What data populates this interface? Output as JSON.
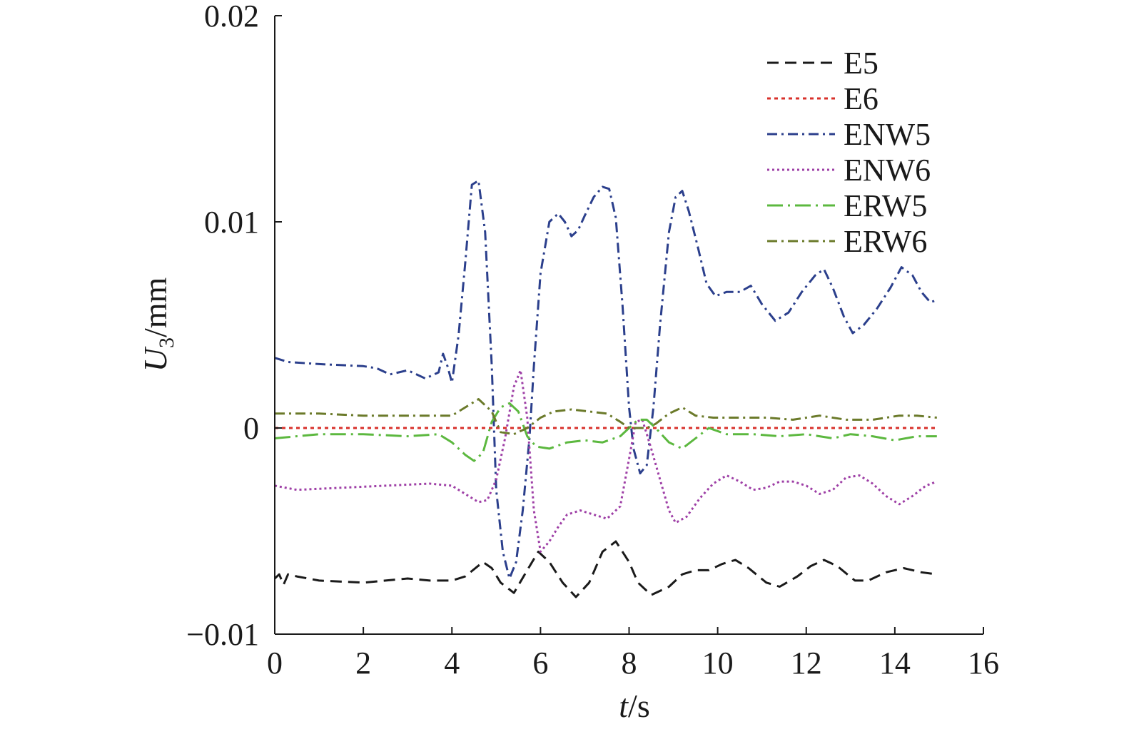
{
  "chart_data": {
    "type": "line",
    "xlabel": {
      "var": "t",
      "unit": "/s"
    },
    "ylabel": {
      "var": "U",
      "sub": "3",
      "unit": "/mm"
    },
    "xlim": [
      0,
      16
    ],
    "ylim": [
      -0.01,
      0.02
    ],
    "xticks": [
      0,
      2,
      4,
      6,
      8,
      10,
      12,
      14,
      16
    ],
    "xtick_labels": [
      "0",
      "2",
      "4",
      "6",
      "8",
      "10",
      "12",
      "14",
      "16"
    ],
    "yticks": [
      -0.01,
      0,
      0.01,
      0.02
    ],
    "ytick_labels": [
      "−0.01",
      "0",
      "0.01",
      "0.02"
    ],
    "grid": false,
    "legend_position": "top-right",
    "series": [
      {
        "name": "E5",
        "color": "#1a1a1a",
        "dash": "dash",
        "points": [
          [
            0,
            -0.0073
          ],
          [
            0.1,
            -0.0071
          ],
          [
            0.2,
            -0.0076
          ],
          [
            0.3,
            -0.0071
          ],
          [
            0.5,
            -0.0072
          ],
          [
            1,
            -0.0074
          ],
          [
            2,
            -0.0075
          ],
          [
            2.5,
            -0.0074
          ],
          [
            3,
            -0.0073
          ],
          [
            3.5,
            -0.0074
          ],
          [
            4,
            -0.0074
          ],
          [
            4.3,
            -0.0072
          ],
          [
            4.7,
            -0.0065
          ],
          [
            4.9,
            -0.0068
          ],
          [
            5.1,
            -0.0075
          ],
          [
            5.4,
            -0.008
          ],
          [
            5.7,
            -0.0069
          ],
          [
            5.95,
            -0.006
          ],
          [
            6.2,
            -0.0065
          ],
          [
            6.5,
            -0.0075
          ],
          [
            6.8,
            -0.0082
          ],
          [
            7.1,
            -0.0075
          ],
          [
            7.4,
            -0.006
          ],
          [
            7.7,
            -0.0055
          ],
          [
            8.0,
            -0.0065
          ],
          [
            8.2,
            -0.0075
          ],
          [
            8.5,
            -0.0081
          ],
          [
            8.9,
            -0.0077
          ],
          [
            9.2,
            -0.0071
          ],
          [
            9.5,
            -0.0069
          ],
          [
            9.8,
            -0.0069
          ],
          [
            10.1,
            -0.0066
          ],
          [
            10.4,
            -0.0064
          ],
          [
            10.7,
            -0.0068
          ],
          [
            11.1,
            -0.0075
          ],
          [
            11.4,
            -0.0077
          ],
          [
            11.8,
            -0.0072
          ],
          [
            12.1,
            -0.0067
          ],
          [
            12.4,
            -0.0064
          ],
          [
            12.7,
            -0.0067
          ],
          [
            13.1,
            -0.0074
          ],
          [
            13.4,
            -0.0074
          ],
          [
            13.8,
            -0.007
          ],
          [
            14.2,
            -0.0068
          ],
          [
            14.6,
            -0.007
          ],
          [
            14.95,
            -0.0071
          ]
        ]
      },
      {
        "name": "E6",
        "color": "#d8312b",
        "dash": "dot",
        "points": [
          [
            0,
            0
          ],
          [
            14.95,
            0
          ]
        ]
      },
      {
        "name": "ENW5",
        "color": "#2b3f8c",
        "dash": "dashdot",
        "points": [
          [
            0,
            0.0034
          ],
          [
            0.3,
            0.0032
          ],
          [
            1,
            0.0031
          ],
          [
            2,
            0.003
          ],
          [
            2.3,
            0.0029
          ],
          [
            2.6,
            0.0026
          ],
          [
            3,
            0.0028
          ],
          [
            3.4,
            0.0024
          ],
          [
            3.7,
            0.0027
          ],
          [
            3.8,
            0.0036
          ],
          [
            3.9,
            0.003
          ],
          [
            4.0,
            0.0022
          ],
          [
            4.15,
            0.0045
          ],
          [
            4.3,
            0.008
          ],
          [
            4.45,
            0.0118
          ],
          [
            4.6,
            0.012
          ],
          [
            4.75,
            0.0095
          ],
          [
            4.9,
            0.003
          ],
          [
            5.0,
            -0.003
          ],
          [
            5.15,
            -0.006
          ],
          [
            5.3,
            -0.0073
          ],
          [
            5.45,
            -0.0065
          ],
          [
            5.6,
            -0.004
          ],
          [
            5.75,
            -0.0005
          ],
          [
            5.85,
            0.003
          ],
          [
            6.0,
            0.0075
          ],
          [
            6.2,
            0.01
          ],
          [
            6.4,
            0.0104
          ],
          [
            6.55,
            0.01
          ],
          [
            6.7,
            0.0093
          ],
          [
            6.85,
            0.0096
          ],
          [
            7.0,
            0.0103
          ],
          [
            7.2,
            0.0112
          ],
          [
            7.4,
            0.0117
          ],
          [
            7.55,
            0.0116
          ],
          [
            7.7,
            0.0102
          ],
          [
            7.85,
            0.006
          ],
          [
            8.0,
            0.001
          ],
          [
            8.1,
            -0.001
          ],
          [
            8.25,
            -0.0022
          ],
          [
            8.4,
            -0.0018
          ],
          [
            8.55,
            0.001
          ],
          [
            8.7,
            0.005
          ],
          [
            8.9,
            0.0095
          ],
          [
            9.05,
            0.0112
          ],
          [
            9.2,
            0.0115
          ],
          [
            9.35,
            0.0105
          ],
          [
            9.55,
            0.0088
          ],
          [
            9.75,
            0.007
          ],
          [
            9.95,
            0.0064
          ],
          [
            10.2,
            0.0066
          ],
          [
            10.5,
            0.0066
          ],
          [
            10.75,
            0.0069
          ],
          [
            11.0,
            0.006
          ],
          [
            11.3,
            0.0052
          ],
          [
            11.6,
            0.0056
          ],
          [
            11.9,
            0.0066
          ],
          [
            12.2,
            0.0074
          ],
          [
            12.4,
            0.0077
          ],
          [
            12.6,
            0.0068
          ],
          [
            12.85,
            0.0054
          ],
          [
            13.05,
            0.0046
          ],
          [
            13.3,
            0.005
          ],
          [
            13.6,
            0.0058
          ],
          [
            13.9,
            0.0068
          ],
          [
            14.15,
            0.0078
          ],
          [
            14.4,
            0.0074
          ],
          [
            14.6,
            0.0066
          ],
          [
            14.8,
            0.0061
          ],
          [
            14.95,
            0.0062
          ]
        ]
      },
      {
        "name": "ENW6",
        "color": "#9e3fa6",
        "dash": "dotted",
        "points": [
          [
            0,
            -0.0028
          ],
          [
            0.5,
            -0.003
          ],
          [
            1.5,
            -0.0029
          ],
          [
            2.5,
            -0.0028
          ],
          [
            3.5,
            -0.0027
          ],
          [
            4.0,
            -0.0028
          ],
          [
            4.3,
            -0.0032
          ],
          [
            4.6,
            -0.0036
          ],
          [
            4.8,
            -0.0035
          ],
          [
            5.0,
            -0.0025
          ],
          [
            5.2,
            -0.0005
          ],
          [
            5.4,
            0.002
          ],
          [
            5.55,
            0.0028
          ],
          [
            5.7,
            0.0005
          ],
          [
            5.85,
            -0.004
          ],
          [
            6.0,
            -0.006
          ],
          [
            6.2,
            -0.0055
          ],
          [
            6.4,
            -0.0048
          ],
          [
            6.6,
            -0.0042
          ],
          [
            6.9,
            -0.004
          ],
          [
            7.2,
            -0.0042
          ],
          [
            7.5,
            -0.0044
          ],
          [
            7.8,
            -0.0038
          ],
          [
            8.0,
            -0.0015
          ],
          [
            8.15,
            0.0003
          ],
          [
            8.3,
            0.0004
          ],
          [
            8.5,
            -0.001
          ],
          [
            8.7,
            -0.0025
          ],
          [
            8.9,
            -0.004
          ],
          [
            9.05,
            -0.0046
          ],
          [
            9.3,
            -0.0043
          ],
          [
            9.6,
            -0.0034
          ],
          [
            9.9,
            -0.0027
          ],
          [
            10.2,
            -0.0023
          ],
          [
            10.5,
            -0.0026
          ],
          [
            10.8,
            -0.003
          ],
          [
            11.1,
            -0.0029
          ],
          [
            11.4,
            -0.0026
          ],
          [
            11.7,
            -0.0026
          ],
          [
            12.0,
            -0.0028
          ],
          [
            12.3,
            -0.0032
          ],
          [
            12.6,
            -0.003
          ],
          [
            12.9,
            -0.0024
          ],
          [
            13.2,
            -0.0023
          ],
          [
            13.5,
            -0.0027
          ],
          [
            13.8,
            -0.0033
          ],
          [
            14.1,
            -0.0037
          ],
          [
            14.4,
            -0.0033
          ],
          [
            14.7,
            -0.0028
          ],
          [
            14.95,
            -0.0026
          ]
        ]
      },
      {
        "name": "ERW5",
        "color": "#5cb83f",
        "dash": "longdashdot",
        "points": [
          [
            0,
            -0.0005
          ],
          [
            1,
            -0.0003
          ],
          [
            2,
            -0.0003
          ],
          [
            3,
            -0.0004
          ],
          [
            3.7,
            -0.0003
          ],
          [
            4.0,
            -0.0007
          ],
          [
            4.3,
            -0.0013
          ],
          [
            4.5,
            -0.0016
          ],
          [
            4.7,
            -0.0012
          ],
          [
            4.9,
            0.0003
          ],
          [
            5.1,
            0.001
          ],
          [
            5.3,
            0.0012
          ],
          [
            5.5,
            0.0008
          ],
          [
            5.7,
            -0.0004
          ],
          [
            5.9,
            -0.0009
          ],
          [
            6.2,
            -0.001
          ],
          [
            6.6,
            -0.0007
          ],
          [
            7.0,
            -0.0006
          ],
          [
            7.4,
            -0.0007
          ],
          [
            7.8,
            -0.0004
          ],
          [
            8.0,
            0.0
          ],
          [
            8.2,
            0.0004
          ],
          [
            8.4,
            0.0004
          ],
          [
            8.6,
            0.0
          ],
          [
            8.9,
            -0.0007
          ],
          [
            9.2,
            -0.001
          ],
          [
            9.5,
            -0.0005
          ],
          [
            9.8,
            0.0
          ],
          [
            10.2,
            -0.0003
          ],
          [
            10.8,
            -0.0003
          ],
          [
            11.4,
            -0.0004
          ],
          [
            12.0,
            -0.0003
          ],
          [
            12.6,
            -0.0005
          ],
          [
            13.0,
            -0.0003
          ],
          [
            13.5,
            -0.0004
          ],
          [
            14.0,
            -0.0006
          ],
          [
            14.5,
            -0.0004
          ],
          [
            14.95,
            -0.0004
          ]
        ]
      },
      {
        "name": "ERW6",
        "color": "#6b7a2a",
        "dash": "dashdot",
        "points": [
          [
            0,
            0.0007
          ],
          [
            1,
            0.0007
          ],
          [
            2,
            0.0006
          ],
          [
            3,
            0.0006
          ],
          [
            4,
            0.0006
          ],
          [
            4.3,
            0.001
          ],
          [
            4.6,
            0.0014
          ],
          [
            4.9,
            0.0008
          ],
          [
            5.1,
            -0.0002
          ],
          [
            5.4,
            -0.0003
          ],
          [
            5.7,
            0.0
          ],
          [
            6.0,
            0.0005
          ],
          [
            6.3,
            0.0008
          ],
          [
            6.7,
            0.0009
          ],
          [
            7.1,
            0.0008
          ],
          [
            7.5,
            0.0007
          ],
          [
            7.8,
            0.0003
          ],
          [
            8.0,
            0.0
          ],
          [
            8.2,
            0.0
          ],
          [
            8.4,
            0.0
          ],
          [
            8.6,
            0.0002
          ],
          [
            8.9,
            0.0007
          ],
          [
            9.2,
            0.001
          ],
          [
            9.5,
            0.0006
          ],
          [
            9.9,
            0.0005
          ],
          [
            10.5,
            0.0005
          ],
          [
            11.1,
            0.0005
          ],
          [
            11.7,
            0.0004
          ],
          [
            12.3,
            0.0006
          ],
          [
            12.9,
            0.0004
          ],
          [
            13.5,
            0.0004
          ],
          [
            14.1,
            0.0006
          ],
          [
            14.5,
            0.0006
          ],
          [
            14.95,
            0.0005
          ]
        ]
      }
    ]
  }
}
